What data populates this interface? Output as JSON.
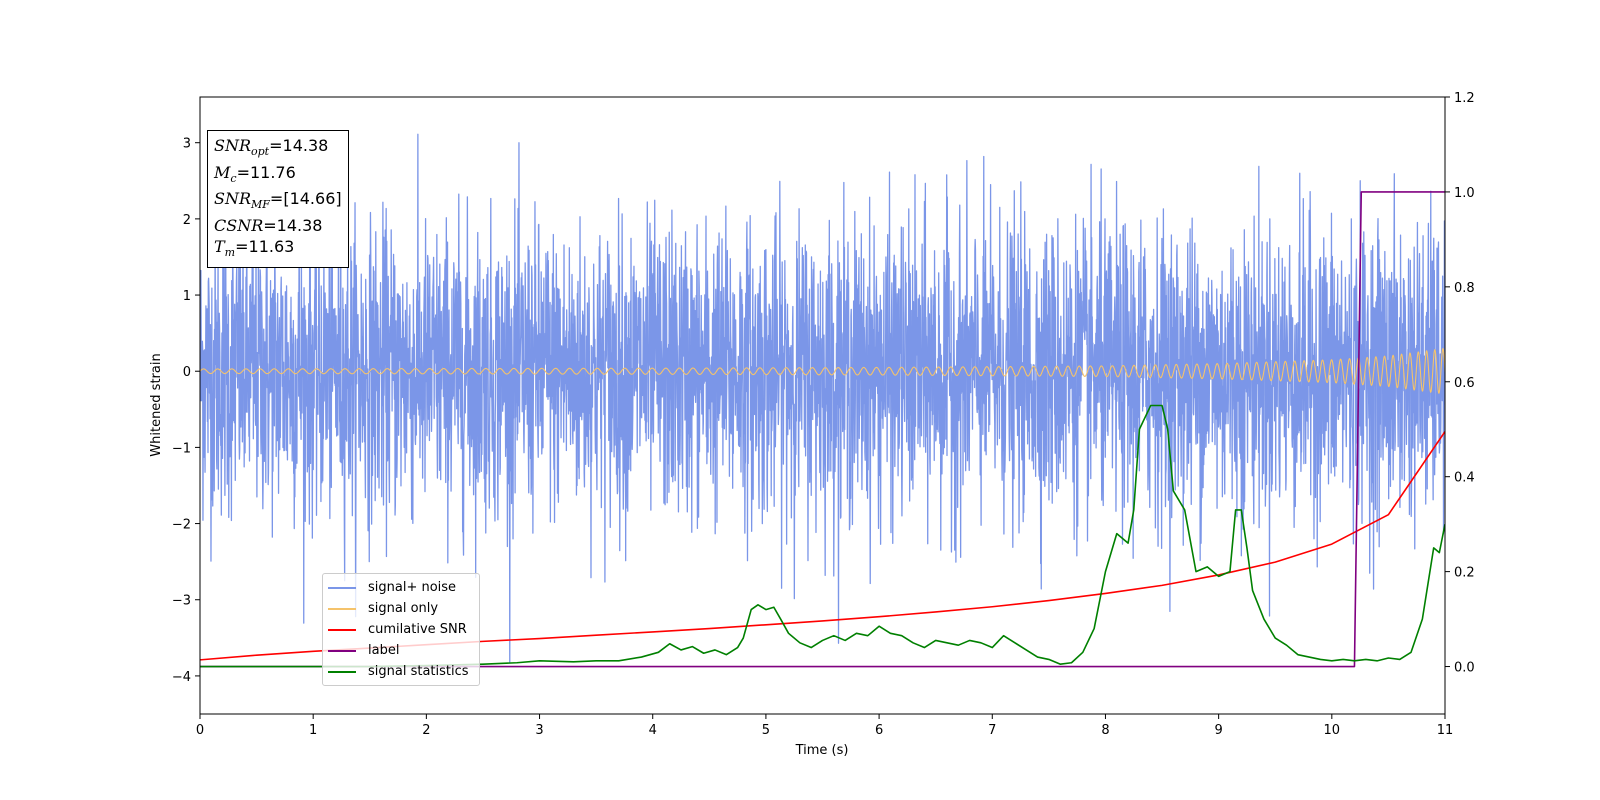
{
  "chart_data": {
    "type": "line",
    "xlabel": "Time (s)",
    "ylabel": "Whitened strain",
    "xlim": [
      0,
      11
    ],
    "ylim_left": [
      -4.5,
      3.6
    ],
    "ylim_right": [
      -0.1,
      1.2
    ],
    "x_ticks": [
      "0",
      "1",
      "2",
      "3",
      "4",
      "5",
      "6",
      "7",
      "8",
      "9",
      "10",
      "11"
    ],
    "y_left_ticks": [
      "3",
      "2",
      "1",
      "0",
      "−1",
      "−2",
      "−3",
      "−4"
    ],
    "y_left_tick_values": [
      3,
      2,
      1,
      0,
      -1,
      -2,
      -3,
      -4
    ],
    "y_right_ticks": [
      "1.2",
      "1.0",
      "0.8",
      "0.6",
      "0.4",
      "0.2",
      "0.0"
    ],
    "y_right_tick_values": [
      1.2,
      1.0,
      0.8,
      0.6,
      0.4,
      0.2,
      0.0
    ],
    "legend_location": "lower-left",
    "annotation": {
      "snr_opt": "=14.38",
      "mc": "=11.76",
      "snr_mf": "=[14.66]",
      "csnr": "=14.38",
      "tm": "=11.63"
    },
    "series": [
      {
        "name": "signal+ noise",
        "axis": "left",
        "color": "#7b96e8",
        "description_values": {
          "std_approx": 0.95,
          "min": -4.18,
          "max": 3.32
        }
      },
      {
        "name": "signal only",
        "axis": "left",
        "color": "#f5c36b",
        "amplitude_envelope": {
          "x": [
            0,
            2,
            4,
            6,
            8,
            9,
            10,
            10.5,
            11
          ],
          "y": [
            0.03,
            0.035,
            0.04,
            0.05,
            0.07,
            0.1,
            0.15,
            0.2,
            0.3
          ]
        }
      },
      {
        "name": "cumilative SNR",
        "axis": "right",
        "color": "#ff0000",
        "x": [
          0,
          0.5,
          1,
          1.5,
          2,
          2.5,
          3,
          3.5,
          4,
          4.5,
          5,
          5.5,
          6,
          6.5,
          7,
          7.5,
          8,
          8.5,
          9,
          9.5,
          10,
          10.5,
          11
        ],
        "y": [
          0.014,
          0.024,
          0.032,
          0.039,
          0.046,
          0.053,
          0.059,
          0.066,
          0.073,
          0.08,
          0.088,
          0.096,
          0.105,
          0.115,
          0.126,
          0.139,
          0.154,
          0.171,
          0.193,
          0.22,
          0.258,
          0.32,
          0.495
        ]
      },
      {
        "name": "label",
        "axis": "right",
        "color": "#800080",
        "x": [
          0,
          10.2,
          10.26,
          11
        ],
        "y": [
          0,
          0,
          1,
          1
        ]
      },
      {
        "name": "signal statistics",
        "axis": "right",
        "color": "#008000",
        "x": [
          0,
          0.5,
          1,
          1.5,
          2,
          2.5,
          2.8,
          3.0,
          3.3,
          3.5,
          3.7,
          3.9,
          4.05,
          4.15,
          4.25,
          4.35,
          4.45,
          4.55,
          4.65,
          4.75,
          4.8,
          4.87,
          4.93,
          5.0,
          5.07,
          5.13,
          5.2,
          5.3,
          5.4,
          5.5,
          5.6,
          5.7,
          5.8,
          5.9,
          6.0,
          6.1,
          6.2,
          6.3,
          6.4,
          6.5,
          6.6,
          6.7,
          6.8,
          6.9,
          7.0,
          7.1,
          7.2,
          7.3,
          7.4,
          7.5,
          7.6,
          7.7,
          7.8,
          7.9,
          8.0,
          8.1,
          8.2,
          8.25,
          8.3,
          8.4,
          8.5,
          8.55,
          8.6,
          8.7,
          8.8,
          8.9,
          9.0,
          9.1,
          9.15,
          9.2,
          9.25,
          9.3,
          9.4,
          9.5,
          9.6,
          9.7,
          9.8,
          9.9,
          10.0,
          10.1,
          10.2,
          10.3,
          10.4,
          10.5,
          10.6,
          10.7,
          10.8,
          10.9,
          10.95,
          11.0
        ],
        "y": [
          0.0,
          0.0,
          0.0,
          0.0,
          0.002,
          0.005,
          0.008,
          0.012,
          0.01,
          0.012,
          0.012,
          0.02,
          0.03,
          0.048,
          0.035,
          0.042,
          0.028,
          0.035,
          0.025,
          0.04,
          0.06,
          0.12,
          0.13,
          0.12,
          0.125,
          0.1,
          0.07,
          0.05,
          0.04,
          0.055,
          0.065,
          0.055,
          0.07,
          0.065,
          0.085,
          0.07,
          0.065,
          0.05,
          0.04,
          0.055,
          0.05,
          0.045,
          0.055,
          0.05,
          0.04,
          0.065,
          0.05,
          0.035,
          0.02,
          0.015,
          0.005,
          0.008,
          0.03,
          0.08,
          0.2,
          0.28,
          0.26,
          0.33,
          0.5,
          0.55,
          0.55,
          0.5,
          0.37,
          0.33,
          0.2,
          0.21,
          0.19,
          0.2,
          0.33,
          0.33,
          0.25,
          0.16,
          0.1,
          0.06,
          0.045,
          0.025,
          0.02,
          0.015,
          0.012,
          0.015,
          0.012,
          0.015,
          0.012,
          0.018,
          0.015,
          0.03,
          0.1,
          0.25,
          0.24,
          0.3
        ]
      }
    ]
  }
}
